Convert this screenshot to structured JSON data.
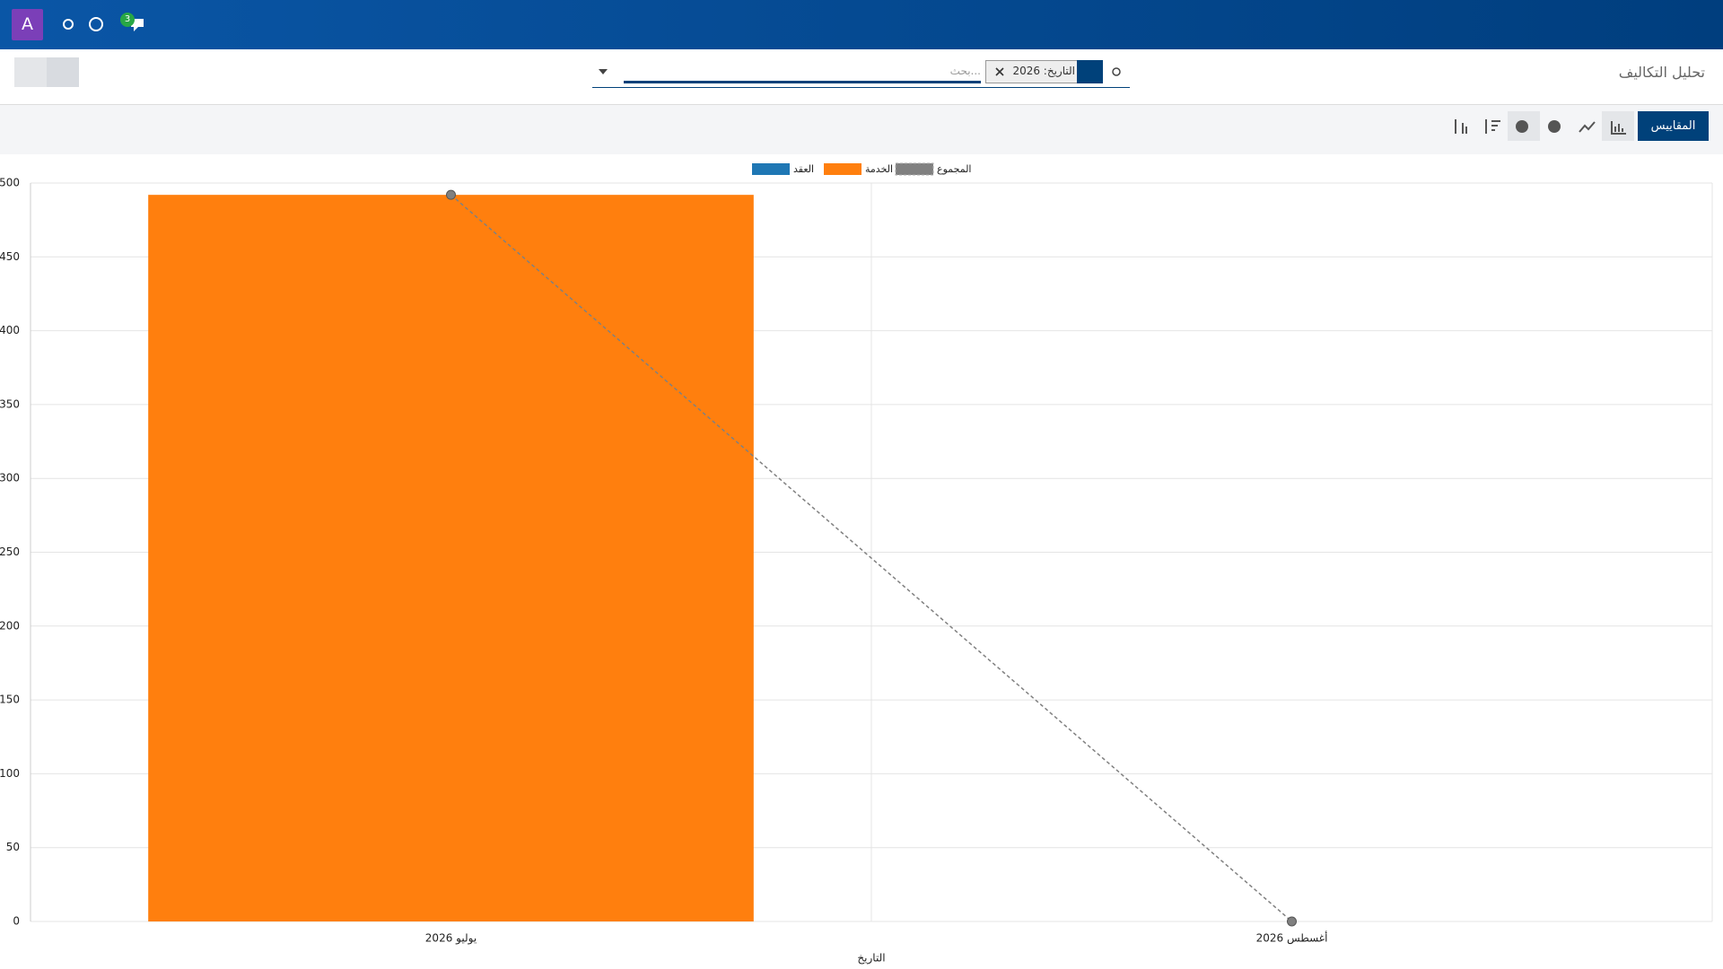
{
  "navbar": {
    "avatar": "A",
    "badge": "3"
  },
  "control_panel": {
    "breadcrumb": "تحليل التكاليف",
    "facet": "التاريخ: 2026",
    "search_placeholder": "بحث...",
    "measures_button": "المقاييس"
  },
  "chart_data": {
    "type": "bar",
    "stacked": true,
    "x_label": "التاريخ",
    "categories": [
      "يوليو 2026",
      "أغسطس 2026"
    ],
    "series": [
      {
        "name": "العقد",
        "color": "#1f77b4",
        "values": [
          0,
          0
        ]
      },
      {
        "name": "الخدمة",
        "color": "#ff7f0e",
        "values": [
          492,
          0
        ]
      },
      {
        "name": "المجموع",
        "color": "#808080",
        "type": "line",
        "dashed": true,
        "values": [
          492,
          0
        ]
      }
    ],
    "ylim": [
      0,
      500
    ],
    "yticks": [
      0,
      50,
      100,
      150,
      200,
      250,
      300,
      350,
      400,
      450,
      500
    ],
    "grid": true
  }
}
